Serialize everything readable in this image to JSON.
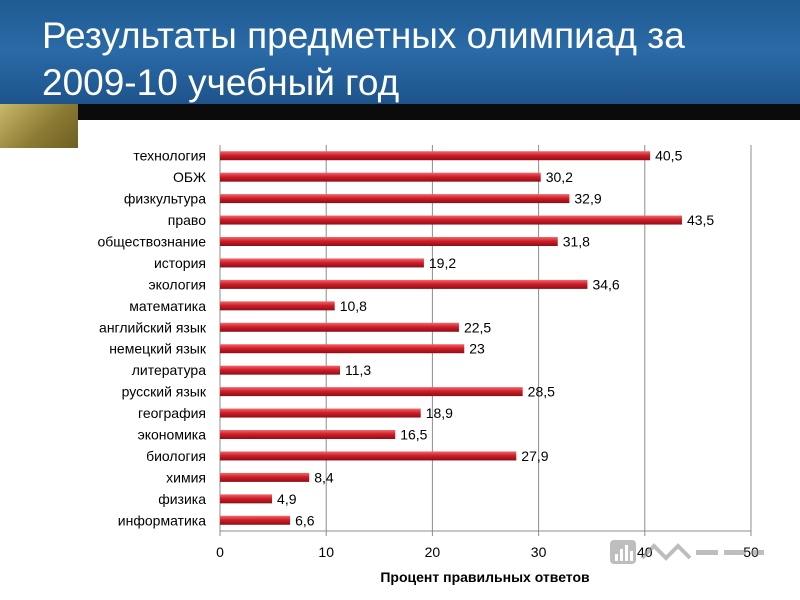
{
  "slide": {
    "title": "Результаты предметных олимпиад за 2009-10 учебный год",
    "colors": {
      "header": "#2a6aa6",
      "bar": "#d01f2a",
      "bar_dark": "#8e0d16",
      "grid": "#8c8c8c",
      "accent_gold": "#a8963f"
    }
  },
  "chart_data": {
    "type": "bar",
    "orientation": "horizontal",
    "categories": [
      "технология",
      "ОБЖ",
      "физкультура",
      "право",
      "обществознание",
      "история",
      "экология",
      "математика",
      "английский язык",
      "немецкий язык",
      "литература",
      "русский язык",
      "география",
      "экономика",
      "биология",
      "химия",
      "физика",
      "информатика"
    ],
    "values": [
      40.5,
      30.2,
      32.9,
      43.5,
      31.8,
      19.2,
      34.6,
      10.8,
      22.5,
      23,
      11.3,
      28.5,
      18.9,
      16.5,
      27.9,
      8.4,
      4.9,
      6.6
    ],
    "value_labels": [
      "40,5",
      "30,2",
      "32,9",
      "43,5",
      "31,8",
      "19,2",
      "34,6",
      "10,8",
      "22,5",
      "23",
      "11,3",
      "28,5",
      "18,9",
      "16,5",
      "27,9",
      "8,4",
      "4,9",
      "6,6"
    ],
    "xlabel": "Процент правильных ответов",
    "xlim": [
      0,
      50
    ],
    "xticks": [
      "0",
      "10",
      "20",
      "30",
      "40",
      "50"
    ],
    "grid": true
  }
}
